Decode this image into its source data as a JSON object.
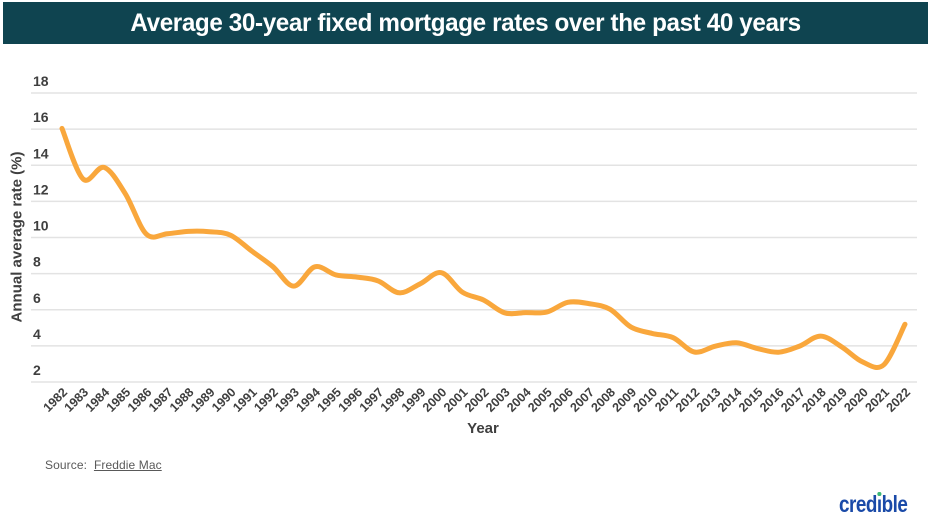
{
  "header": {
    "title": "Average 30-year fixed mortgage rates over the past 40 years"
  },
  "chart_data": {
    "type": "line",
    "title": "Average 30-year fixed mortgage rates over the past 40 years",
    "xlabel": "Year",
    "ylabel": "Annual average rate (%)",
    "x": [
      1982,
      1983,
      1984,
      1985,
      1986,
      1987,
      1988,
      1989,
      1990,
      1991,
      1992,
      1993,
      1994,
      1995,
      1996,
      1997,
      1998,
      1999,
      2000,
      2001,
      2002,
      2003,
      2004,
      2005,
      2006,
      2007,
      2008,
      2009,
      2010,
      2011,
      2012,
      2013,
      2014,
      2015,
      2016,
      2017,
      2018,
      2019,
      2020,
      2021,
      2022
    ],
    "series": [
      {
        "name": "30-year fixed mortgage rate",
        "values": [
          16.04,
          13.24,
          13.88,
          12.43,
          10.19,
          10.21,
          10.34,
          10.32,
          10.13,
          9.25,
          8.39,
          7.31,
          8.38,
          7.93,
          7.81,
          7.6,
          6.94,
          7.44,
          8.05,
          6.97,
          6.54,
          5.83,
          5.84,
          5.87,
          6.41,
          6.34,
          6.03,
          5.04,
          4.69,
          4.45,
          3.66,
          3.98,
          4.17,
          3.85,
          3.65,
          3.99,
          4.54,
          3.94,
          3.1,
          2.96,
          5.2
        ]
      }
    ],
    "y_ticks": [
      18,
      16,
      14,
      12,
      10,
      8,
      6,
      4,
      2
    ],
    "ylim": [
      2,
      18
    ],
    "xlim": [
      1982,
      2022
    ],
    "grid": true,
    "legend": false
  },
  "footer": {
    "source_prefix": "Source:",
    "source_link": "Freddie Mac",
    "logo": "credible"
  },
  "colors": {
    "header_bg": "#0F4450",
    "header_text": "#FFFFFF",
    "line": "#F9A73C",
    "grid": "#E3E3E3",
    "axis_text": "#3F3F3F",
    "source_text": "#595959",
    "logo_blue": "#1A4AA8",
    "logo_dot_green": "#3CB878",
    "background": "#FFFFFF"
  }
}
